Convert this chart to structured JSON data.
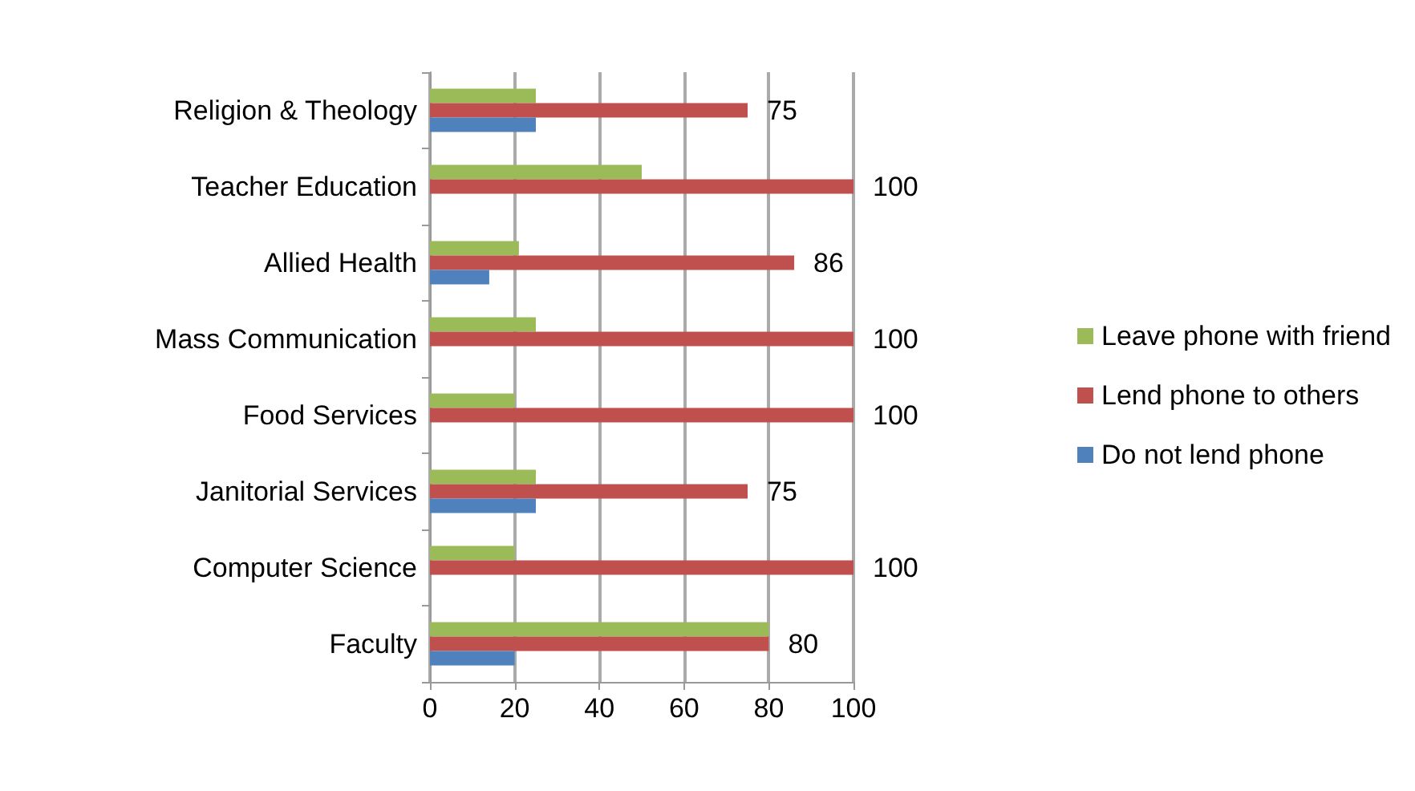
{
  "chart_data": {
    "type": "bar",
    "orientation": "horizontal",
    "categories": [
      "Religion & Theology",
      "Teacher Education",
      "Allied Health",
      "Mass Communication",
      "Food Services",
      "Janitorial Services",
      "Computer Science",
      "Faculty"
    ],
    "series": [
      {
        "name": "Leave phone with friend",
        "color": "#9bbb59",
        "values": [
          25,
          50,
          21,
          25,
          20,
          25,
          20,
          80
        ]
      },
      {
        "name": "Lend phone to others",
        "color": "#c0504d",
        "values": [
          75,
          100,
          86,
          100,
          100,
          75,
          100,
          80
        ],
        "value_labels": [
          "75",
          "100",
          "86",
          "100",
          "100",
          "75",
          "100",
          "80"
        ]
      },
      {
        "name": "Do not lend phone",
        "color": "#4f81bd",
        "values": [
          25,
          0,
          14,
          0,
          0,
          25,
          0,
          20
        ]
      }
    ],
    "xlim": [
      0,
      100
    ],
    "xticks": [
      0,
      20,
      40,
      60,
      80,
      100
    ],
    "grid": "x",
    "legend": "right"
  }
}
